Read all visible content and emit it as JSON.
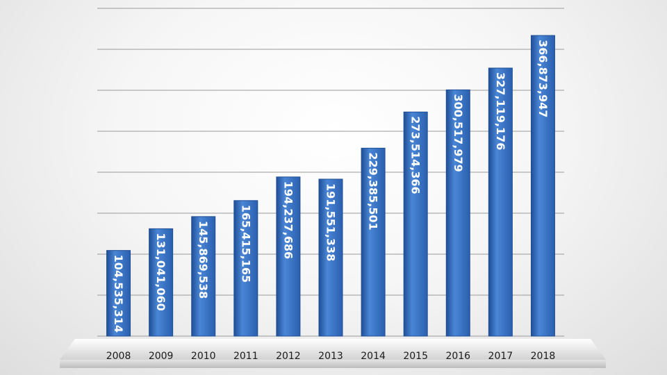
{
  "chart_data": {
    "type": "bar",
    "title": "",
    "xlabel": "",
    "ylabel": "",
    "categories": [
      "2008",
      "2009",
      "2010",
      "2011",
      "2012",
      "2013",
      "2014",
      "2015",
      "2016",
      "2017",
      "2018"
    ],
    "values": [
      104535314,
      131041060,
      145869538,
      165415165,
      194237686,
      191551338,
      229385501,
      273514366,
      300517979,
      327119176,
      366873947
    ],
    "labels": [
      "104,535,314",
      "131,041,060",
      "145,869,538",
      "165,415,165",
      "194,237,686",
      "191,551,338",
      "229,385,501",
      "273,514,366",
      "300,517,979",
      "327,119,176",
      "366,873,947"
    ],
    "ylim": [
      0,
      400000000
    ],
    "grid": true,
    "legend": "none",
    "colors": {
      "bar": "#3b74c4",
      "bar_light": "#5a92dc",
      "bar_dark": "#1f4f96",
      "grid": "#9a9a9a",
      "label": "#ffffff",
      "ticks": "#1a1a1a"
    }
  }
}
